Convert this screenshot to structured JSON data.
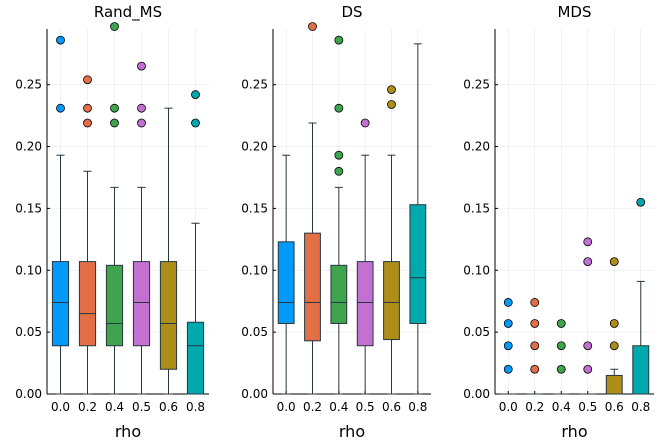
{
  "chart_data": {
    "type": "boxplot",
    "categories": [
      "0.0",
      "0.2",
      "0.4",
      "0.5",
      "0.6",
      "0.8"
    ],
    "colors": [
      "#009AFA",
      "#E26F46",
      "#3EA44E",
      "#C271D2",
      "#AC8E18",
      "#00A9AD"
    ],
    "xlabel": "rho",
    "ylim": [
      0,
      0.295
    ],
    "yticks": [
      "0.00",
      "0.05",
      "0.10",
      "0.15",
      "0.20",
      "0.25"
    ],
    "panels": [
      {
        "title": "Rand_MS",
        "boxes": [
          {
            "whisker_low": 0.0,
            "q1": 0.039,
            "median": 0.074,
            "q3": 0.107,
            "whisker_high": 0.193,
            "outliers": [
              0.231,
              0.286
            ]
          },
          {
            "whisker_low": 0.0,
            "q1": 0.039,
            "median": 0.065,
            "q3": 0.107,
            "whisker_high": 0.18,
            "outliers": [
              0.219,
              0.231,
              0.254
            ]
          },
          {
            "whisker_low": 0.0,
            "q1": 0.039,
            "median": 0.057,
            "q3": 0.104,
            "whisker_high": 0.167,
            "outliers": [
              0.219,
              0.231,
              0.297
            ]
          },
          {
            "whisker_low": 0.0,
            "q1": 0.039,
            "median": 0.074,
            "q3": 0.107,
            "whisker_high": 0.167,
            "outliers": [
              0.219,
              0.231,
              0.265
            ]
          },
          {
            "whisker_low": 0.0,
            "q1": 0.02,
            "median": 0.057,
            "q3": 0.107,
            "whisker_high": 0.231,
            "outliers": []
          },
          {
            "whisker_low": 0.0,
            "q1": 0.0,
            "median": 0.039,
            "q3": 0.058,
            "whisker_high": 0.138,
            "outliers": [
              0.219,
              0.242
            ]
          }
        ]
      },
      {
        "title": "DS",
        "boxes": [
          {
            "whisker_low": 0.0,
            "q1": 0.057,
            "median": 0.074,
            "q3": 0.123,
            "whisker_high": 0.193,
            "outliers": []
          },
          {
            "whisker_low": 0.0,
            "q1": 0.043,
            "median": 0.074,
            "q3": 0.13,
            "whisker_high": 0.219,
            "outliers": [
              0.297
            ]
          },
          {
            "whisker_low": 0.0,
            "q1": 0.057,
            "median": 0.074,
            "q3": 0.104,
            "whisker_high": 0.167,
            "outliers": [
              0.18,
              0.193,
              0.231,
              0.286
            ]
          },
          {
            "whisker_low": 0.0,
            "q1": 0.039,
            "median": 0.074,
            "q3": 0.107,
            "whisker_high": 0.193,
            "outliers": [
              0.219
            ]
          },
          {
            "whisker_low": 0.0,
            "q1": 0.044,
            "median": 0.074,
            "q3": 0.107,
            "whisker_high": 0.193,
            "outliers": [
              0.234,
              0.246
            ]
          },
          {
            "whisker_low": 0.0,
            "q1": 0.057,
            "median": 0.094,
            "q3": 0.153,
            "whisker_high": 0.283,
            "outliers": []
          }
        ]
      },
      {
        "title": "MDS",
        "boxes": [
          {
            "whisker_low": 0.0,
            "q1": 0.0,
            "median": 0.0,
            "q3": 0.0,
            "whisker_high": 0.0,
            "outliers": [
              0.02,
              0.039,
              0.057,
              0.074
            ]
          },
          {
            "whisker_low": 0.0,
            "q1": 0.0,
            "median": 0.0,
            "q3": 0.0,
            "whisker_high": 0.0,
            "outliers": [
              0.02,
              0.039,
              0.057,
              0.074
            ]
          },
          {
            "whisker_low": 0.0,
            "q1": 0.0,
            "median": 0.0,
            "q3": 0.0,
            "whisker_high": 0.0,
            "outliers": [
              0.02,
              0.039,
              0.057
            ]
          },
          {
            "whisker_low": 0.0,
            "q1": 0.0,
            "median": 0.0,
            "q3": 0.0,
            "whisker_high": 0.0,
            "outliers": [
              0.02,
              0.039,
              0.107,
              0.123
            ]
          },
          {
            "whisker_low": 0.0,
            "q1": 0.0,
            "median": 0.0,
            "q3": 0.015,
            "whisker_high": 0.02,
            "outliers": [
              0.039,
              0.057,
              0.107
            ]
          },
          {
            "whisker_low": 0.0,
            "q1": 0.0,
            "median": 0.0,
            "q3": 0.039,
            "whisker_high": 0.091,
            "outliers": [
              0.155
            ]
          }
        ]
      }
    ]
  }
}
